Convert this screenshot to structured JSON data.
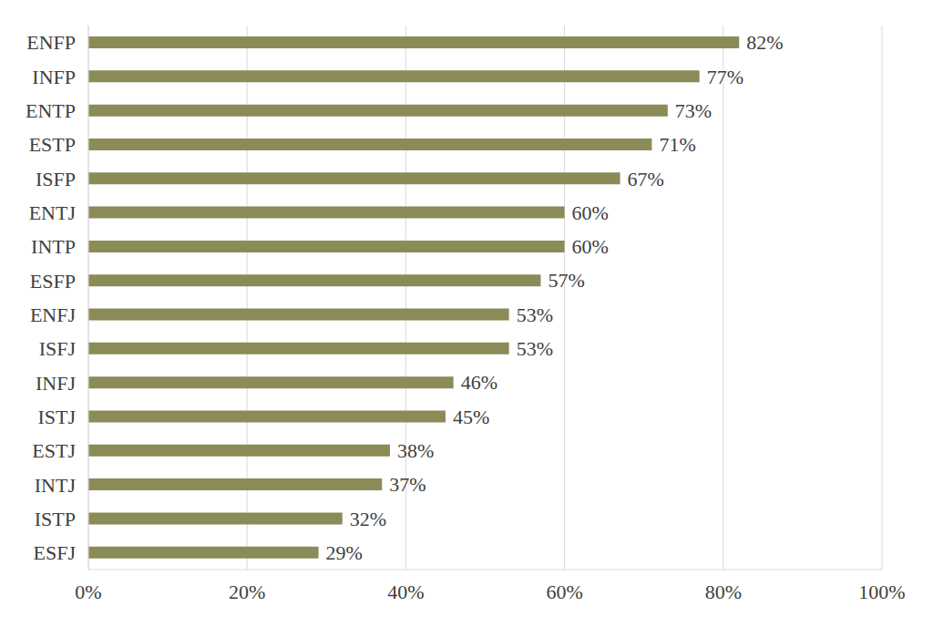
{
  "chart_data": {
    "type": "bar",
    "orientation": "horizontal",
    "categories": [
      "ENFP",
      "INFP",
      "ENTP",
      "ESTP",
      "ISFP",
      "ENTJ",
      "INTP",
      "ESFP",
      "ENFJ",
      "ISFJ",
      "INFJ",
      "ISTJ",
      "ESTJ",
      "INTJ",
      "ISTP",
      "ESFJ"
    ],
    "values": [
      82,
      77,
      73,
      71,
      67,
      60,
      60,
      57,
      53,
      53,
      46,
      45,
      38,
      37,
      32,
      29
    ],
    "value_labels": [
      "82%",
      "77%",
      "73%",
      "71%",
      "67%",
      "60%",
      "60%",
      "57%",
      "53%",
      "53%",
      "46%",
      "45%",
      "38%",
      "37%",
      "32%",
      "29%"
    ],
    "color": "#8b8b57",
    "xlim": [
      0,
      100
    ],
    "xticks": [
      {
        "value": 0,
        "label": "0%"
      },
      {
        "value": 20,
        "label": "20%"
      },
      {
        "value": 40,
        "label": "40%"
      },
      {
        "value": 60,
        "label": "60%"
      },
      {
        "value": 80,
        "label": "80%"
      },
      {
        "value": 100,
        "label": "100%"
      }
    ],
    "grid": true,
    "data_labels": true
  }
}
